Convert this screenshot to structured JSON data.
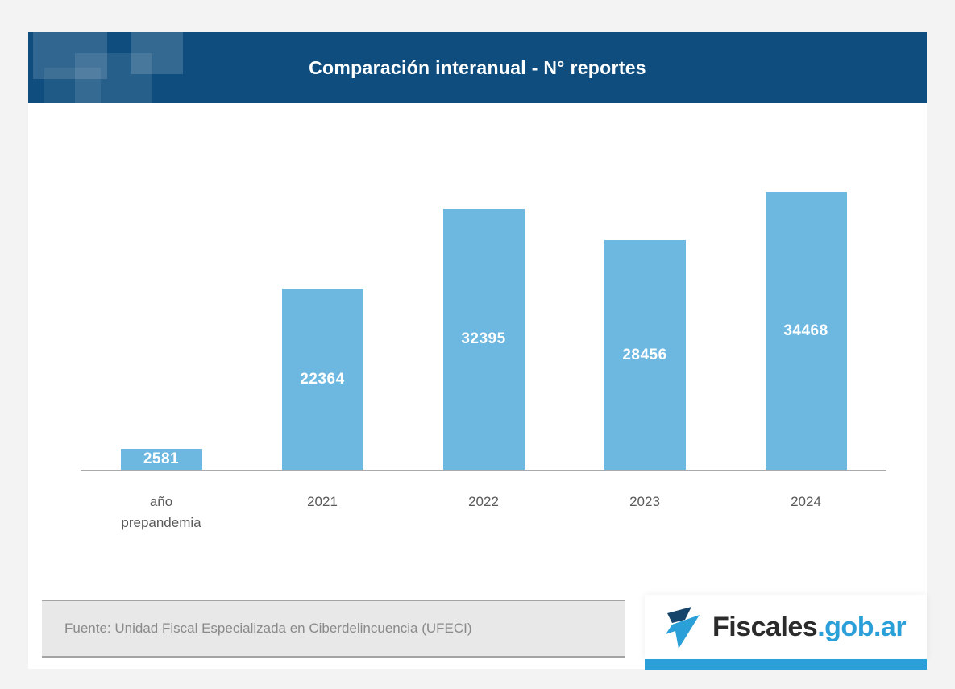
{
  "header": {
    "title": "Comparación interanual - N° reportes"
  },
  "chart_data": {
    "type": "bar",
    "categories": [
      "año\nprepandemia",
      "2021",
      "2022",
      "2023",
      "2024"
    ],
    "values": [
      2581,
      22364,
      32395,
      28456,
      34468
    ],
    "title": "Comparación interanual - N° reportes",
    "xlabel": "",
    "ylabel": "",
    "ylim": [
      0,
      35000
    ],
    "grid": false,
    "legend": false,
    "bar_color": "#6cb8e1",
    "value_label_color": "#ffffff",
    "header_background": "#0e4d7d"
  },
  "footer": {
    "source": "Fuente: Unidad Fiscal Especializada en Ciberdelincuencia (UFECI)"
  },
  "logo": {
    "name": "Fiscales",
    "suffix": ".gob.ar",
    "accent_color": "#2ba0d8"
  }
}
